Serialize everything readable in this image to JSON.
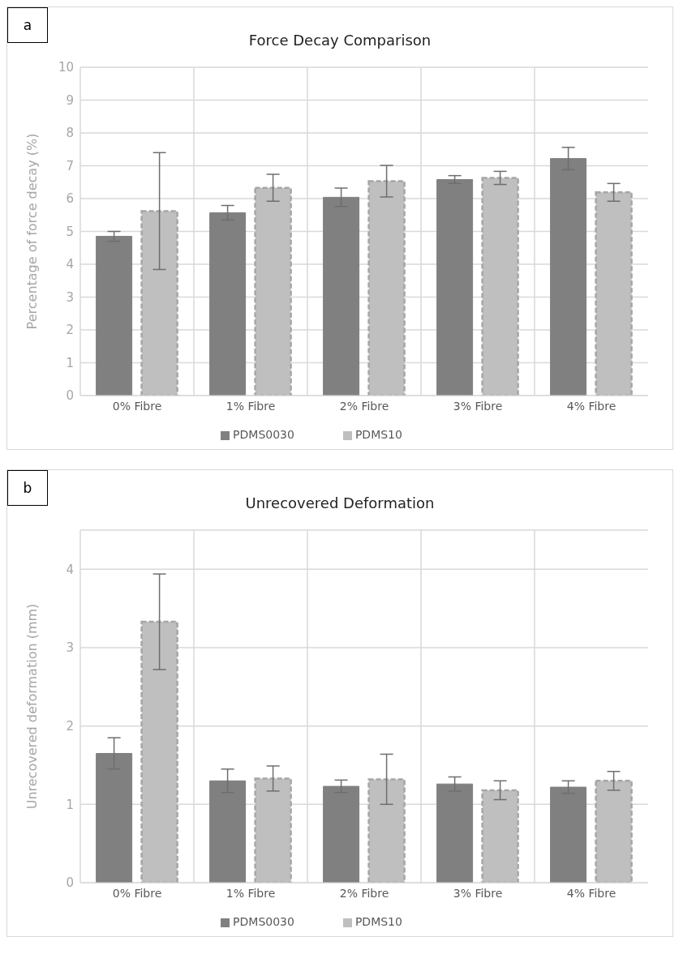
{
  "chart_data": [
    {
      "type": "bar",
      "title": "Force Decay Comparison",
      "ylabel": "Percentage of force decay (%)",
      "annotations": [
        "a"
      ],
      "categories": [
        "0% Fibre",
        "1%  Fibre",
        "2%  Fibre",
        "3%  Fibre",
        "4%  Fibre"
      ],
      "series": [
        {
          "name": "PDMS0030",
          "color": "#808080",
          "values": [
            4.85,
            5.57,
            6.04,
            6.58,
            7.22
          ],
          "errors": [
            0.15,
            0.22,
            0.28,
            0.12,
            0.34
          ]
        },
        {
          "name": "PDMS10",
          "color": "#bfbfbf",
          "line_style": "dashed",
          "values": [
            5.62,
            6.33,
            6.53,
            6.63,
            6.19
          ],
          "errors": [
            1.78,
            0.41,
            0.48,
            0.2,
            0.27
          ]
        }
      ],
      "ylim": [
        0,
        10
      ],
      "yticks": [
        0,
        1,
        2,
        3,
        4,
        5,
        6,
        7,
        8,
        9,
        10
      ],
      "grid": true,
      "legend": "bottom"
    },
    {
      "type": "bar",
      "title": "Unrecovered Deformation",
      "ylabel": "Unrecovered deformation (mm)",
      "annotations": [
        "b"
      ],
      "categories": [
        "0% Fibre",
        "1%  Fibre",
        "2%  Fibre",
        "3%  Fibre",
        "4%  Fibre"
      ],
      "series": [
        {
          "name": "PDMS0030",
          "color": "#808080",
          "values": [
            1.65,
            1.3,
            1.23,
            1.26,
            1.22
          ],
          "errors": [
            0.2,
            0.15,
            0.08,
            0.09,
            0.08
          ]
        },
        {
          "name": "PDMS10",
          "color": "#bfbfbf",
          "line_style": "dashed",
          "values": [
            3.33,
            1.33,
            1.32,
            1.18,
            1.3
          ],
          "errors": [
            0.61,
            0.16,
            0.32,
            0.12,
            0.12
          ]
        }
      ],
      "ylim": [
        0,
        4.5
      ],
      "yticks": [
        0,
        1,
        2,
        3,
        4
      ],
      "grid": true,
      "legend": "bottom"
    }
  ]
}
